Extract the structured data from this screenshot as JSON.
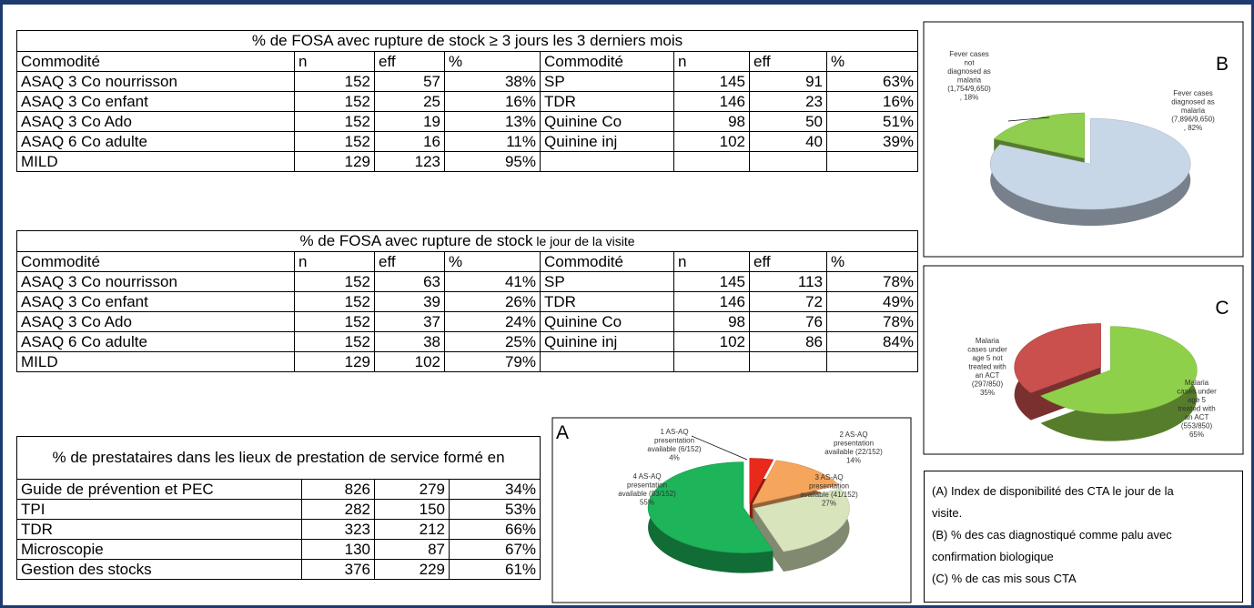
{
  "table1": {
    "title": "% de FOSA avec rupture de stock ≥  3 jours les 3 derniers mois",
    "header": [
      "Commodité",
      "n",
      "eff",
      "%",
      "Commodité",
      "n",
      "eff",
      "%"
    ],
    "rows": [
      [
        "ASAQ 3 Co nourrisson",
        152,
        57,
        "38%",
        "SP",
        145,
        91,
        "63%"
      ],
      [
        "ASAQ 3 Co enfant",
        152,
        25,
        "16%",
        "TDR",
        146,
        23,
        "16%"
      ],
      [
        "ASAQ 3 Co Ado",
        152,
        19,
        "13%",
        "Quinine Co",
        98,
        50,
        "51%"
      ],
      [
        "ASAQ 6 Co adulte",
        152,
        16,
        "11%",
        "Quinine inj",
        102,
        40,
        "39%"
      ],
      [
        "MILD",
        129,
        123,
        "95%"
      ]
    ]
  },
  "table2": {
    "title": [
      "% de FOSA avec rupture de stock",
      "le jour de la visite"
    ],
    "header": [
      "Commodité",
      "n",
      "eff",
      "%",
      "Commodité",
      "n",
      "eff",
      "%"
    ],
    "rows": [
      [
        "ASAQ 3 Co nourrisson",
        152,
        63,
        "41%",
        "SP",
        145,
        113,
        "78%"
      ],
      [
        "ASAQ 3 Co enfant",
        152,
        39,
        "26%",
        "TDR",
        146,
        72,
        "49%"
      ],
      [
        "ASAQ 3 Co Ado",
        152,
        37,
        "24%",
        "Quinine Co",
        98,
        76,
        "78%"
      ],
      [
        "ASAQ 6 Co adulte",
        152,
        38,
        "25%",
        "Quinine inj",
        102,
        86,
        "84%"
      ],
      [
        "MILD",
        129,
        102,
        "79%"
      ]
    ]
  },
  "table3": {
    "title": "% de prestataires dans les lieux de prestation de service formé en",
    "rows": [
      [
        "Guide de prévention et PEC",
        826,
        279,
        "34%"
      ],
      [
        "TPI",
        282,
        150,
        "53%"
      ],
      [
        "TDR",
        323,
        212,
        "66%"
      ],
      [
        "Microscopie",
        130,
        87,
        "67%"
      ],
      [
        "Gestion des stocks",
        376,
        229,
        "61%"
      ]
    ]
  },
  "pies": [
    {
      "letter": "A",
      "type": "pie",
      "slices": [
        {
          "label": [
            "1 AS-AQ",
            "presentation",
            "available (6/152)",
            "4%"
          ],
          "value": 4,
          "color": "#e8291c"
        },
        {
          "label": [
            "2 AS-AQ",
            "presentation",
            "available (22/152)",
            "14%"
          ],
          "value": 14,
          "color": "#f5a55c"
        },
        {
          "label": [
            "3 AS-AQ",
            "presentation",
            "available (41/152)",
            "27%"
          ],
          "value": 27,
          "color": "#d7e4bc"
        },
        {
          "label": [
            "4 AS-AQ",
            "presentation",
            "available (83/152)",
            "55%"
          ],
          "value": 55,
          "color": "#1db45a"
        }
      ]
    },
    {
      "letter": "B",
      "type": "pie",
      "slices": [
        {
          "label": [
            "Fever cases",
            "not",
            "diagnosed as",
            "malaria",
            "(1,754/9,650)",
            ", 18%"
          ],
          "value": 18,
          "color": "#8fce4f"
        },
        {
          "label": [
            "Fever cases",
            "diagnosed as",
            "malaria",
            "(7,896/9,650)",
            ", 82%"
          ],
          "value": 82,
          "color": "#c8d7e8"
        }
      ]
    },
    {
      "letter": "C",
      "type": "pie",
      "slices": [
        {
          "label": [
            "Malaria",
            "cases under",
            "age 5 not",
            "treated with",
            "an ACT",
            "(297/850)",
            "35%"
          ],
          "value": 35,
          "color": "#c9504c"
        },
        {
          "label": [
            "Malaria",
            "cases under",
            "age 5",
            "treated with",
            "an ACT",
            "(553/850)",
            "65%"
          ],
          "value": 65,
          "color": "#8fd04a"
        }
      ]
    }
  ],
  "notes": [
    "(A) Index de disponibilité des CTA le jour de la visite.",
    "(B) % des cas diagnostiqué comme palu avec confirmation biologique",
    "(C) % de cas mis sous CTA"
  ]
}
